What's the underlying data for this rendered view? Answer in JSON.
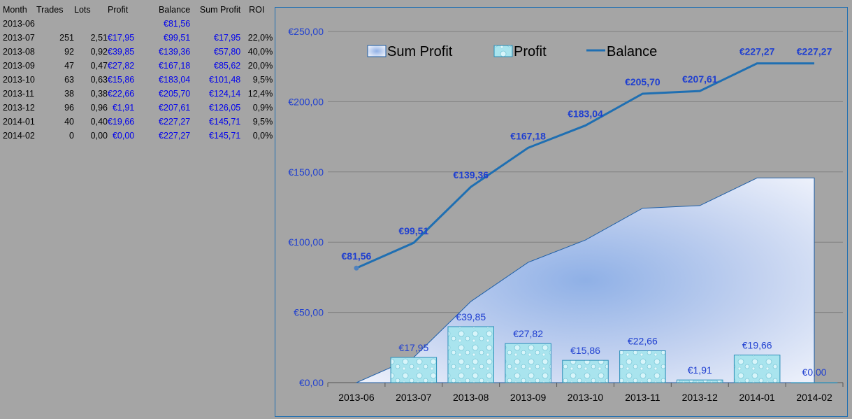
{
  "table": {
    "headers": [
      "Month",
      "Trades",
      "Lots",
      "Profit",
      "Balance",
      "Sum Profit",
      "ROI"
    ],
    "rows": [
      [
        "2013-06",
        "",
        "",
        "",
        "€81,56",
        "",
        ""
      ],
      [
        "2013-07",
        "251",
        "2,51",
        "€17,95",
        "€99,51",
        "€17,95",
        "22,0%"
      ],
      [
        "2013-08",
        "92",
        "0,92",
        "€39,85",
        "€139,36",
        "€57,80",
        "40,0%"
      ],
      [
        "2013-09",
        "47",
        "0,47",
        "€27,82",
        "€167,18",
        "€85,62",
        "20,0%"
      ],
      [
        "2013-10",
        "63",
        "0,63",
        "€15,86",
        "€183,04",
        "€101,48",
        "9,5%"
      ],
      [
        "2013-11",
        "38",
        "0,38",
        "€22,66",
        "€205,70",
        "€124,14",
        "12,4%"
      ],
      [
        "2013-12",
        "96",
        "0,96",
        "€1,91",
        "€207,61",
        "€126,05",
        "0,9%"
      ],
      [
        "2014-01",
        "40",
        "0,40",
        "€19,66",
        "€227,27",
        "€145,71",
        "9,5%"
      ],
      [
        "2014-02",
        "0",
        "0,00",
        "€0,00",
        "€227,27",
        "€145,71",
        "0,0%"
      ]
    ]
  },
  "chart_data": {
    "type": "bar",
    "categories": [
      "2013-06",
      "2013-07",
      "2013-08",
      "2013-09",
      "2013-10",
      "2013-11",
      "2013-12",
      "2014-01",
      "2014-02"
    ],
    "series": [
      {
        "name": "Sum Profit",
        "type": "area",
        "values": [
          0,
          17.95,
          57.8,
          85.62,
          101.48,
          124.14,
          126.05,
          145.71,
          145.71
        ]
      },
      {
        "name": "Profit",
        "type": "bar",
        "values": [
          null,
          17.95,
          39.85,
          27.82,
          15.86,
          22.66,
          1.91,
          19.66,
          0.0
        ],
        "labels": [
          "",
          "€17,95",
          "€39,85",
          "€27,82",
          "€15,86",
          "€22,66",
          "€1,91",
          "€19,66",
          "€0,00"
        ]
      },
      {
        "name": "Balance",
        "type": "line",
        "values": [
          81.56,
          99.51,
          139.36,
          167.18,
          183.04,
          205.7,
          207.61,
          227.27,
          227.27
        ],
        "labels": [
          "€81,56",
          "€99,51",
          "€139,36",
          "€167,18",
          "€183,04",
          "€205,70",
          "€207,61",
          "€227,27",
          "€227,27"
        ]
      }
    ],
    "ylim": [
      0,
      250
    ],
    "yticks": [
      0,
      50,
      100,
      150,
      200,
      250
    ],
    "ytick_labels": [
      "€0,00",
      "€50,00",
      "€100,00",
      "€150,00",
      "€200,00",
      "€250,00"
    ],
    "grid": true,
    "legend": "top",
    "colors": {
      "balance": "#1f6fb2",
      "label": "#1f3fd0",
      "bar_fill": "#a9e4ee",
      "bar_edge": "#2a8fb8",
      "area_edge": "#1f5fa8"
    }
  }
}
